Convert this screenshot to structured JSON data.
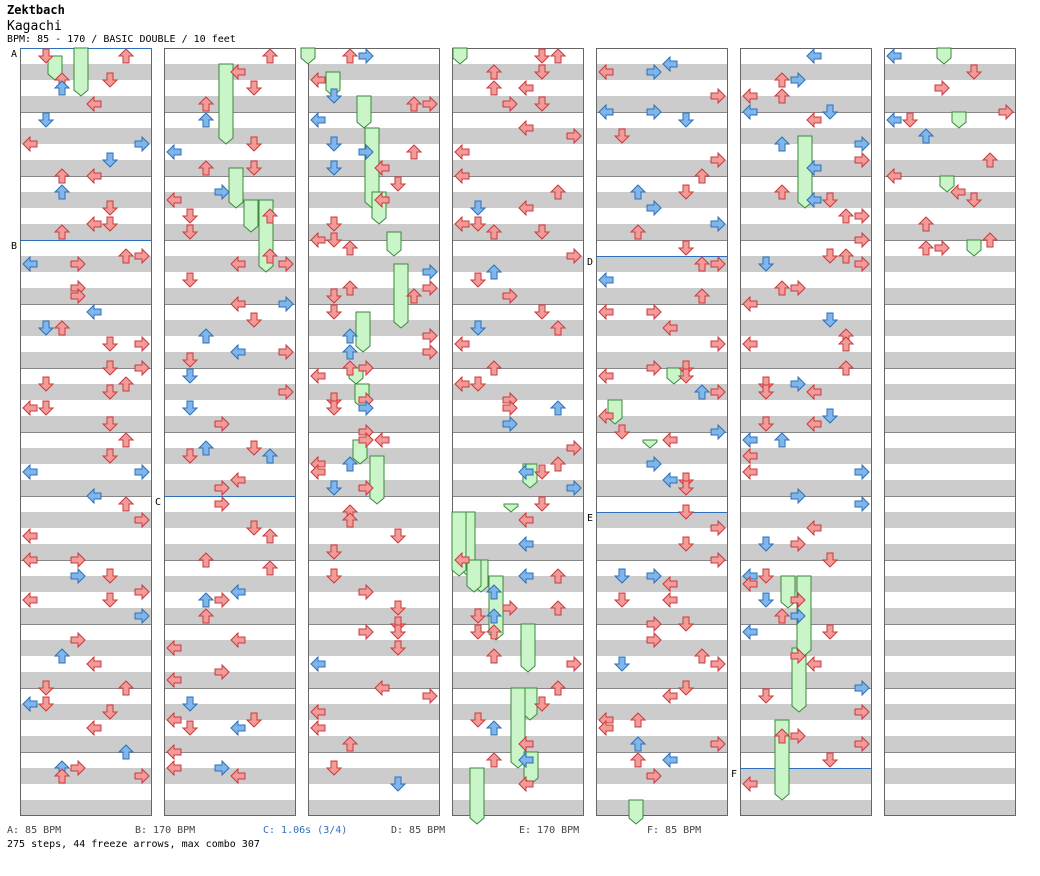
{
  "artist": "Zektbach",
  "song": "Kagachi",
  "meta": "BPM: 85 - 170 / BASIC DOUBLE / 10 feet",
  "legend": [
    {
      "text": "A: 85 BPM",
      "color": "#444444"
    },
    {
      "text": "B: 170 BPM",
      "color": "#444444"
    },
    {
      "text": "C: 1.06s (3/4)",
      "color": "#2f6fbf"
    },
    {
      "text": "D: 85 BPM",
      "color": "#444444"
    },
    {
      "text": "E: 170 BPM",
      "color": "#444444"
    },
    {
      "text": "F: 85 BPM",
      "color": "#444444"
    }
  ],
  "stats": "275 steps, 44 freeze arrows, max combo 307",
  "section_markers": [
    {
      "label": "A",
      "column": 0,
      "measure": 0
    },
    {
      "label": "B",
      "column": 0,
      "measure": 3
    },
    {
      "label": "C",
      "column": 1,
      "measure": 7
    },
    {
      "label": "D",
      "column": 4,
      "measure": 3.25
    },
    {
      "label": "E",
      "column": 4,
      "measure": 7.25
    },
    {
      "label": "F",
      "column": 5,
      "measure": 11.25
    }
  ],
  "colors": {
    "note_red": "#f39a9a",
    "note_red_edge": "#c83a3a",
    "note_blue": "#7fb6ec",
    "note_blue_edge": "#2c6fb8",
    "freeze_fill": "#c9f5c9",
    "freeze_edge": "#3a8a3a",
    "stripe": "#cccccc",
    "marker_line": "#2f6fbf"
  }
}
